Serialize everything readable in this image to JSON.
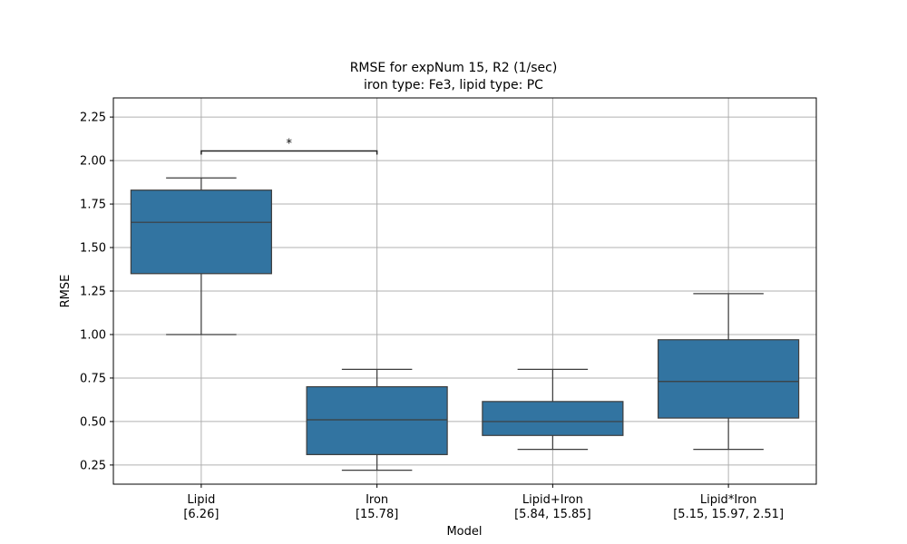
{
  "chart_data": {
    "type": "box",
    "title": "RMSE for expNum 15, R2 (1/sec)",
    "subtitle": "iron type: Fe3, lipid type: PC",
    "xlabel": "Model",
    "ylabel": "RMSE",
    "ylim": [
      0.14,
      2.36
    ],
    "yticks": [
      "0.25",
      "0.50",
      "0.75",
      "1.00",
      "1.25",
      "1.50",
      "1.75",
      "2.00",
      "2.25"
    ],
    "grid": true,
    "box_color": "#3274a1",
    "categories": [
      {
        "name": "Lipid",
        "sub": "[6.26]",
        "whisker_low": 1.0,
        "q1": 1.35,
        "median": 1.645,
        "q3": 1.83,
        "whisker_high": 1.9
      },
      {
        "name": "Iron",
        "sub": "[15.78]",
        "whisker_low": 0.22,
        "q1": 0.31,
        "median": 0.51,
        "q3": 0.7,
        "whisker_high": 0.8
      },
      {
        "name": "Lipid+Iron",
        "sub": "[5.84, 15.85]",
        "whisker_low": 0.34,
        "q1": 0.42,
        "median": 0.5,
        "q3": 0.615,
        "whisker_high": 0.8
      },
      {
        "name": "Lipid*Iron",
        "sub": "[5.15, 15.97, 2.51]",
        "whisker_low": 0.34,
        "q1": 0.52,
        "median": 0.73,
        "q3": 0.97,
        "whisker_high": 1.235
      }
    ],
    "annotation": {
      "from": 0,
      "to": 1,
      "y": 2.055,
      "label": "*"
    }
  }
}
